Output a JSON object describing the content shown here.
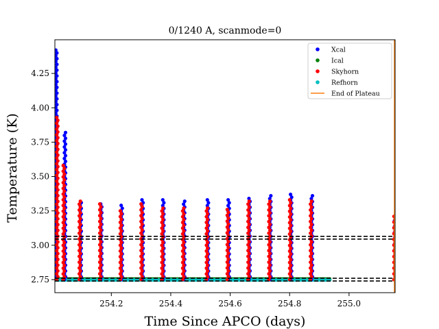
{
  "chart_data": {
    "type": "scatter",
    "title": "0/1240 A, scanmode=0",
    "xlabel": "Time Since APCO (days)",
    "ylabel": "Temperature (K)",
    "xlim": [
      254.01,
      255.155
    ],
    "ylim": [
      2.655,
      4.495
    ],
    "x_ticks": [
      254.2,
      254.4,
      254.6,
      254.8,
      255.0
    ],
    "x_tick_labels": [
      "254.2",
      "254.4",
      "254.6",
      "254.8",
      "255.0"
    ],
    "y_ticks": [
      2.75,
      3.0,
      3.25,
      3.5,
      3.75,
      4.0,
      4.25
    ],
    "y_tick_labels": [
      "2.75",
      "3.00",
      "3.25",
      "3.50",
      "3.75",
      "4.00",
      "4.25"
    ],
    "grid": false,
    "legend_position": "top-right",
    "legend": [
      {
        "label": "Xcal",
        "kind": "marker",
        "color": "#0000ff"
      },
      {
        "label": "Ical",
        "kind": "marker",
        "color": "#008000"
      },
      {
        "label": "Skyhorn",
        "kind": "marker",
        "color": "#ff0000"
      },
      {
        "label": "Refhorn",
        "kind": "marker",
        "color": "#00bfbf"
      },
      {
        "label": "End of Plateau",
        "kind": "line",
        "color": "#ff7f0e"
      }
    ],
    "reference_lines": {
      "style": "dashed",
      "color": "#000000",
      "y_values": [
        2.74,
        2.76,
        3.045,
        3.065
      ]
    },
    "end_of_plateau_x": 255.155,
    "series": [
      {
        "name": "Xcal",
        "color": "#0000ff",
        "spikes": [
          {
            "x": 254.015,
            "ymin": 2.75,
            "ymax": 4.42
          },
          {
            "x": 254.044,
            "ymin": 2.75,
            "ymax": 3.82
          },
          {
            "x": 254.097,
            "ymin": 2.75,
            "ymax": 3.31
          },
          {
            "x": 254.166,
            "ymin": 2.75,
            "ymax": 3.3
          },
          {
            "x": 254.235,
            "ymin": 2.75,
            "ymax": 3.29
          },
          {
            "x": 254.305,
            "ymin": 2.75,
            "ymax": 3.33
          },
          {
            "x": 254.375,
            "ymin": 2.75,
            "ymax": 3.33
          },
          {
            "x": 254.445,
            "ymin": 2.75,
            "ymax": 3.32
          },
          {
            "x": 254.525,
            "ymin": 2.75,
            "ymax": 3.33
          },
          {
            "x": 254.595,
            "ymin": 2.75,
            "ymax": 3.33
          },
          {
            "x": 254.665,
            "ymin": 2.75,
            "ymax": 3.34
          },
          {
            "x": 254.735,
            "ymin": 2.75,
            "ymax": 3.36
          },
          {
            "x": 254.805,
            "ymin": 2.75,
            "ymax": 3.37
          },
          {
            "x": 254.875,
            "ymin": 2.75,
            "ymax": 3.36
          },
          {
            "x": 255.155,
            "ymin": 2.75,
            "ymax": 3.2
          }
        ]
      },
      {
        "name": "Skyhorn",
        "color": "#ff0000",
        "spikes": [
          {
            "x": 254.018,
            "ymin": 2.75,
            "ymax": 3.93
          },
          {
            "x": 254.04,
            "ymin": 2.75,
            "ymax": 3.58
          },
          {
            "x": 254.094,
            "ymin": 2.75,
            "ymax": 3.32
          },
          {
            "x": 254.163,
            "ymin": 2.75,
            "ymax": 3.3
          },
          {
            "x": 254.232,
            "ymin": 2.75,
            "ymax": 3.25
          },
          {
            "x": 254.302,
            "ymin": 2.75,
            "ymax": 3.3
          },
          {
            "x": 254.372,
            "ymin": 2.75,
            "ymax": 3.27
          },
          {
            "x": 254.442,
            "ymin": 2.75,
            "ymax": 3.27
          },
          {
            "x": 254.522,
            "ymin": 2.75,
            "ymax": 3.27
          },
          {
            "x": 254.592,
            "ymin": 2.75,
            "ymax": 3.26
          },
          {
            "x": 254.662,
            "ymin": 2.75,
            "ymax": 3.32
          },
          {
            "x": 254.732,
            "ymin": 2.75,
            "ymax": 3.32
          },
          {
            "x": 254.802,
            "ymin": 2.75,
            "ymax": 3.33
          },
          {
            "x": 254.872,
            "ymin": 2.75,
            "ymax": 3.32
          },
          {
            "x": 255.153,
            "ymin": 2.75,
            "ymax": 3.21
          }
        ]
      },
      {
        "name": "Ical",
        "color": "#008000",
        "y": 2.755,
        "x_range": [
          254.01,
          254.935
        ]
      },
      {
        "name": "Refhorn",
        "color": "#00bfbf",
        "y": 2.748,
        "x_range": [
          254.01,
          254.935
        ]
      }
    ]
  }
}
